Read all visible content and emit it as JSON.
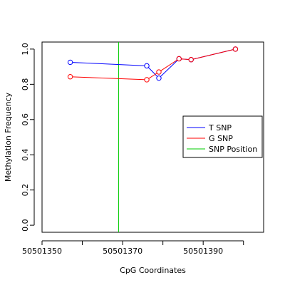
{
  "chart_data": {
    "type": "line",
    "title": "",
    "xlabel": "CpG Coordinates",
    "ylabel": "Methylation Frequency",
    "xlim": [
      50501350,
      50501405
    ],
    "ylim": [
      -0.04,
      1.04
    ],
    "x_ticks": [
      50501350,
      50501360,
      50501370,
      50501380,
      50501390,
      50501400
    ],
    "x_tick_labels": [
      "50501350",
      "50501370",
      "50501390"
    ],
    "y_ticks": [
      0.0,
      0.2,
      0.4,
      0.6,
      0.8,
      1.0
    ],
    "y_tick_labels": [
      "0.0",
      "0.2",
      "0.4",
      "0.6",
      "0.8",
      "1.0"
    ],
    "grid": false,
    "legend_position": "right",
    "series": [
      {
        "name": "T SNP",
        "color": "#0000ff",
        "x": [
          50501357,
          50501376,
          50501379,
          50501384,
          50501387,
          50501398
        ],
        "y": [
          0.925,
          0.905,
          0.835,
          0.945,
          0.94,
          1.0
        ]
      },
      {
        "name": "G SNP",
        "color": "#ff0000",
        "x": [
          50501357,
          50501376,
          50501379,
          50501384,
          50501387,
          50501398
        ],
        "y": [
          0.843,
          0.826,
          0.87,
          0.945,
          0.94,
          1.0
        ]
      }
    ],
    "vlines": [
      {
        "name": "SNP Position",
        "color": "#00cc00",
        "x": 50501369
      }
    ]
  }
}
